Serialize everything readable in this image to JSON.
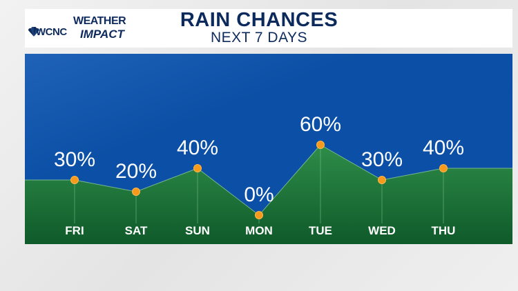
{
  "header": {
    "logo": {
      "station": "WCNC",
      "brand_line1": "WEATHER",
      "brand_line2": "IMPACT"
    },
    "title": "RAIN CHANCES",
    "subtitle": "NEXT 7 DAYS"
  },
  "colors": {
    "sky_top": "#1f62b8",
    "sky_bottom": "#0b4fa6",
    "ground_top": "#2e8d49",
    "ground_bottom": "#0f5a2a",
    "marker": "#f59a1c",
    "title": "#0d2a5c"
  },
  "chart_data": {
    "type": "area",
    "categories": [
      "FRI",
      "SAT",
      "SUN",
      "MON",
      "TUE",
      "WED",
      "THU"
    ],
    "values": [
      30,
      20,
      40,
      0,
      60,
      30,
      40
    ],
    "value_labels": [
      "30%",
      "20%",
      "40%",
      "0%",
      "60%",
      "30%",
      "40%"
    ],
    "title": "RAIN CHANCES",
    "subtitle": "NEXT 7 DAYS",
    "ylim": [
      0,
      100
    ],
    "grid": false,
    "legend": "none"
  }
}
